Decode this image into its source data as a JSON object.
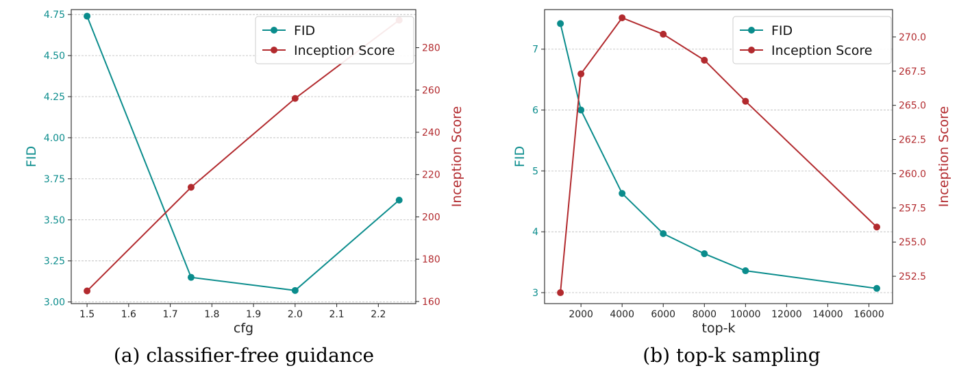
{
  "colors": {
    "fid": "#0a8c8c",
    "is": "#b22a2e",
    "grid": "#b8b8b8",
    "axis": "#222222"
  },
  "captions": [
    "(a) classifier-free guidance",
    "(b) top-k sampling"
  ],
  "chart_data": [
    {
      "type": "line",
      "xlabel": "cfg",
      "ylabel_left": "FID",
      "ylabel_right": "Inception Score",
      "x": [
        1.5,
        1.75,
        2.0,
        2.25
      ],
      "xticks": [
        1.5,
        1.6,
        1.7,
        1.8,
        1.9,
        2.0,
        2.1,
        2.2
      ],
      "xtick_labels": [
        "1.5",
        "1.6",
        "1.7",
        "1.8",
        "1.9",
        "2.0",
        "2.1",
        "2.2"
      ],
      "xlim": [
        1.462,
        2.29
      ],
      "y_left": {
        "lim": [
          2.99,
          4.78
        ],
        "ticks": [
          3.0,
          3.25,
          3.5,
          3.75,
          4.0,
          4.25,
          4.5,
          4.75
        ],
        "tick_labels": [
          "3.00",
          "3.25",
          "3.50",
          "3.75",
          "4.00",
          "4.25",
          "4.50",
          "4.75"
        ]
      },
      "y_right": {
        "lim": [
          159,
          298
        ],
        "ticks": [
          160,
          180,
          200,
          220,
          240,
          260,
          280
        ],
        "tick_labels": [
          "160",
          "180",
          "200",
          "220",
          "240",
          "260",
          "280"
        ]
      },
      "grid": "horizontal (left axis ticks)",
      "legend_position": "upper right",
      "series": [
        {
          "name": "FID",
          "axis": "left",
          "color": "#0a8c8c",
          "values": [
            4.74,
            3.15,
            3.07,
            3.62
          ]
        },
        {
          "name": "Inception Score",
          "axis": "right",
          "color": "#b22a2e",
          "values": [
            165,
            214,
            256,
            293
          ]
        }
      ]
    },
    {
      "type": "line",
      "xlabel": "top-k",
      "ylabel_left": "FID",
      "ylabel_right": "Inception Score",
      "x": [
        1000,
        2000,
        4000,
        6000,
        8000,
        10000,
        16384
      ],
      "xticks": [
        2000,
        4000,
        6000,
        8000,
        10000,
        12000,
        14000,
        16000
      ],
      "xtick_labels": [
        "2000",
        "4000",
        "6000",
        "8000",
        "10000",
        "12000",
        "14000",
        "16000"
      ],
      "xlim": [
        230,
        17150
      ],
      "y_left": {
        "lim": [
          2.82,
          7.65
        ],
        "ticks": [
          3,
          4,
          5,
          6,
          7
        ],
        "tick_labels": [
          "3",
          "4",
          "5",
          "6",
          "7"
        ]
      },
      "y_right": {
        "lim": [
          250.5,
          272.0
        ],
        "ticks": [
          252.5,
          255.0,
          257.5,
          260.0,
          262.5,
          265.0,
          267.5,
          270.0
        ],
        "tick_labels": [
          "252.5",
          "255.0",
          "257.5",
          "260.0",
          "262.5",
          "265.0",
          "267.5",
          "270.0"
        ]
      },
      "grid": "horizontal (left axis ticks)",
      "legend_position": "upper right",
      "series": [
        {
          "name": "FID",
          "axis": "left",
          "color": "#0a8c8c",
          "values": [
            7.42,
            6.0,
            4.63,
            3.97,
            3.64,
            3.36,
            3.07
          ]
        },
        {
          "name": "Inception Score",
          "axis": "right",
          "color": "#b22a2e",
          "values": [
            251.3,
            267.3,
            271.4,
            270.2,
            268.3,
            265.3,
            256.1
          ]
        }
      ]
    }
  ]
}
